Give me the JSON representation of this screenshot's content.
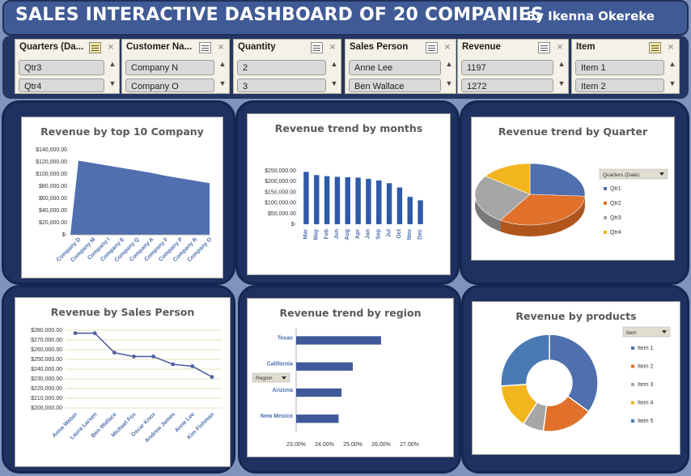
{
  "header": {
    "title": "SALES INTERACTIVE DASHBOARD OF 20 COMPANIES",
    "author": "By Ikenna Okereke"
  },
  "slicers": [
    {
      "title": "Quarters (Da...",
      "items": [
        "Qtr3",
        "Qtr4"
      ],
      "icon_active": true
    },
    {
      "title": "Customer Na...",
      "items": [
        "Company N",
        "Company O"
      ],
      "icon_active": false
    },
    {
      "title": "Quantity",
      "items": [
        "2",
        "3"
      ],
      "icon_active": false
    },
    {
      "title": "Sales Person",
      "items": [
        "Anne Lee",
        "Ben Wallace"
      ],
      "icon_active": false
    },
    {
      "title": "Revenue",
      "items": [
        "1197",
        "1272"
      ],
      "icon_active": false
    },
    {
      "title": "Item",
      "items": [
        "Item 1",
        "Item 2"
      ],
      "icon_active": true
    }
  ],
  "colors": {
    "blue": "#4f6fae",
    "orange": "#e0702a",
    "gray": "#a6a6a6",
    "gold": "#f2b51d",
    "darkblue": "#2e5aa8"
  },
  "chart_data": [
    {
      "type": "area",
      "title": "Revenue by top 10 Company",
      "categories": [
        "Company D",
        "Company M",
        "Company I",
        "Company E",
        "Company Q",
        "Company A",
        "Company F",
        "Company P",
        "Company R",
        "Company O"
      ],
      "values": [
        122000,
        118000,
        114000,
        110000,
        106000,
        102000,
        97000,
        93000,
        89000,
        85000
      ],
      "yticks": [
        "$140,000.00",
        "$120,000.00",
        "$100,000.00",
        "$80,000.00",
        "$60,000.00",
        "$40,000.00",
        "$20,000.00",
        "$-"
      ],
      "ylim": [
        0,
        140000
      ],
      "grid": false
    },
    {
      "type": "bar",
      "title": "Revenue trend by months",
      "categories": [
        "Mar",
        "May",
        "Feb",
        "Jun",
        "Aug",
        "Apr",
        "Jan",
        "Sep",
        "Jul",
        "Oct",
        "Nov",
        "Dec"
      ],
      "values": [
        245000,
        230000,
        225000,
        222000,
        220000,
        218000,
        212000,
        205000,
        192000,
        172000,
        128000,
        112000
      ],
      "yticks": [
        "$250,000.00",
        "$200,000.00",
        "$150,000.00",
        "$100,000.00",
        "$50,000.00",
        "$-"
      ],
      "ylim": [
        0,
        250000
      ],
      "grid": false
    },
    {
      "type": "pie",
      "title": "Revenue trend by Quarter",
      "legend_filter": "Quarters (Date)",
      "categories": [
        "Qtr1",
        "Qtr2",
        "Qtr3",
        "Qtr4"
      ],
      "values": [
        26,
        33,
        26,
        15
      ],
      "legend": "right"
    },
    {
      "type": "line",
      "title": "Revenue by Sales Person",
      "categories": [
        "Anna Weber",
        "Laura Larsen",
        "Ben Wallace",
        "Michael Fox",
        "Oscar Knox",
        "Andrew James",
        "Anne Lee",
        "Kim Fishman"
      ],
      "values": [
        277000,
        277000,
        257000,
        253000,
        253000,
        245000,
        243000,
        232000
      ],
      "yticks": [
        "$280,000.00",
        "$270,000.00",
        "$260,000.00",
        "$250,000.00",
        "$240,000.00",
        "$230,000.00",
        "$220,000.00",
        "$210,000.00",
        "$200,000.00"
      ],
      "ylim": [
        200000,
        280000
      ],
      "grid": true
    },
    {
      "type": "bar",
      "orientation": "horizontal",
      "title": "Revenue trend by region",
      "legend_filter": "Region",
      "categories": [
        "Texas",
        "California",
        "Arizona",
        "New Mexico"
      ],
      "values": [
        26.0,
        25.0,
        24.6,
        24.5
      ],
      "xticks": [
        "23.00%",
        "24.00%",
        "25.00%",
        "26.00%",
        "27.00%"
      ],
      "xlim": [
        23,
        27
      ],
      "grid": false
    },
    {
      "type": "pie",
      "subtype": "doughnut",
      "title": "Revenue by products",
      "legend_filter": "Item",
      "categories": [
        "Item 1",
        "Item 2",
        "Item 3",
        "Item 4",
        "Item 5"
      ],
      "values": [
        35,
        17,
        7,
        15,
        26
      ],
      "legend": "right"
    }
  ]
}
